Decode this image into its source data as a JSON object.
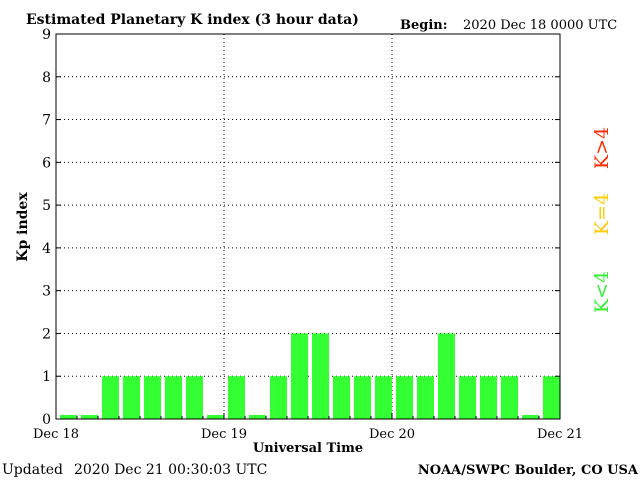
{
  "header": {
    "title": "Estimated Planetary K index (3 hour data)",
    "begin_label": "Begin:",
    "begin_value": "2020 Dec 18 0000 UTC"
  },
  "footer": {
    "updated_label": "Updated",
    "updated_value": "2020 Dec 21 00:30:03 UTC",
    "credit": "NOAA/SWPC Boulder, CO USA"
  },
  "legend": {
    "high": {
      "text": "K>4",
      "color": "#ff2a00"
    },
    "equal": {
      "text": "K=4",
      "color": "#ffcc00"
    },
    "low": {
      "text": "K<4",
      "color": "#33ee33"
    }
  },
  "colors": {
    "bar": "#33ff33",
    "axis": "#000000",
    "grid": "#000000"
  },
  "chart_data": {
    "type": "bar",
    "title": "Estimated Planetary K index (3 hour data)",
    "xlabel": "Universal Time",
    "ylabel": "Kp index",
    "ylim": [
      0,
      9
    ],
    "yticks": [
      "0",
      "1",
      "2",
      "3",
      "4",
      "5",
      "6",
      "7",
      "8",
      "9"
    ],
    "xticks": [
      "Dec 18",
      "Dec 19",
      "Dec 20",
      "Dec 21"
    ],
    "intervals_per_day": 8,
    "grid": true,
    "values": [
      0,
      0,
      1,
      1,
      1,
      1,
      1,
      0,
      1,
      0,
      1,
      2,
      2,
      1,
      1,
      1,
      1,
      1,
      2,
      1,
      1,
      1,
      0,
      1
    ]
  }
}
